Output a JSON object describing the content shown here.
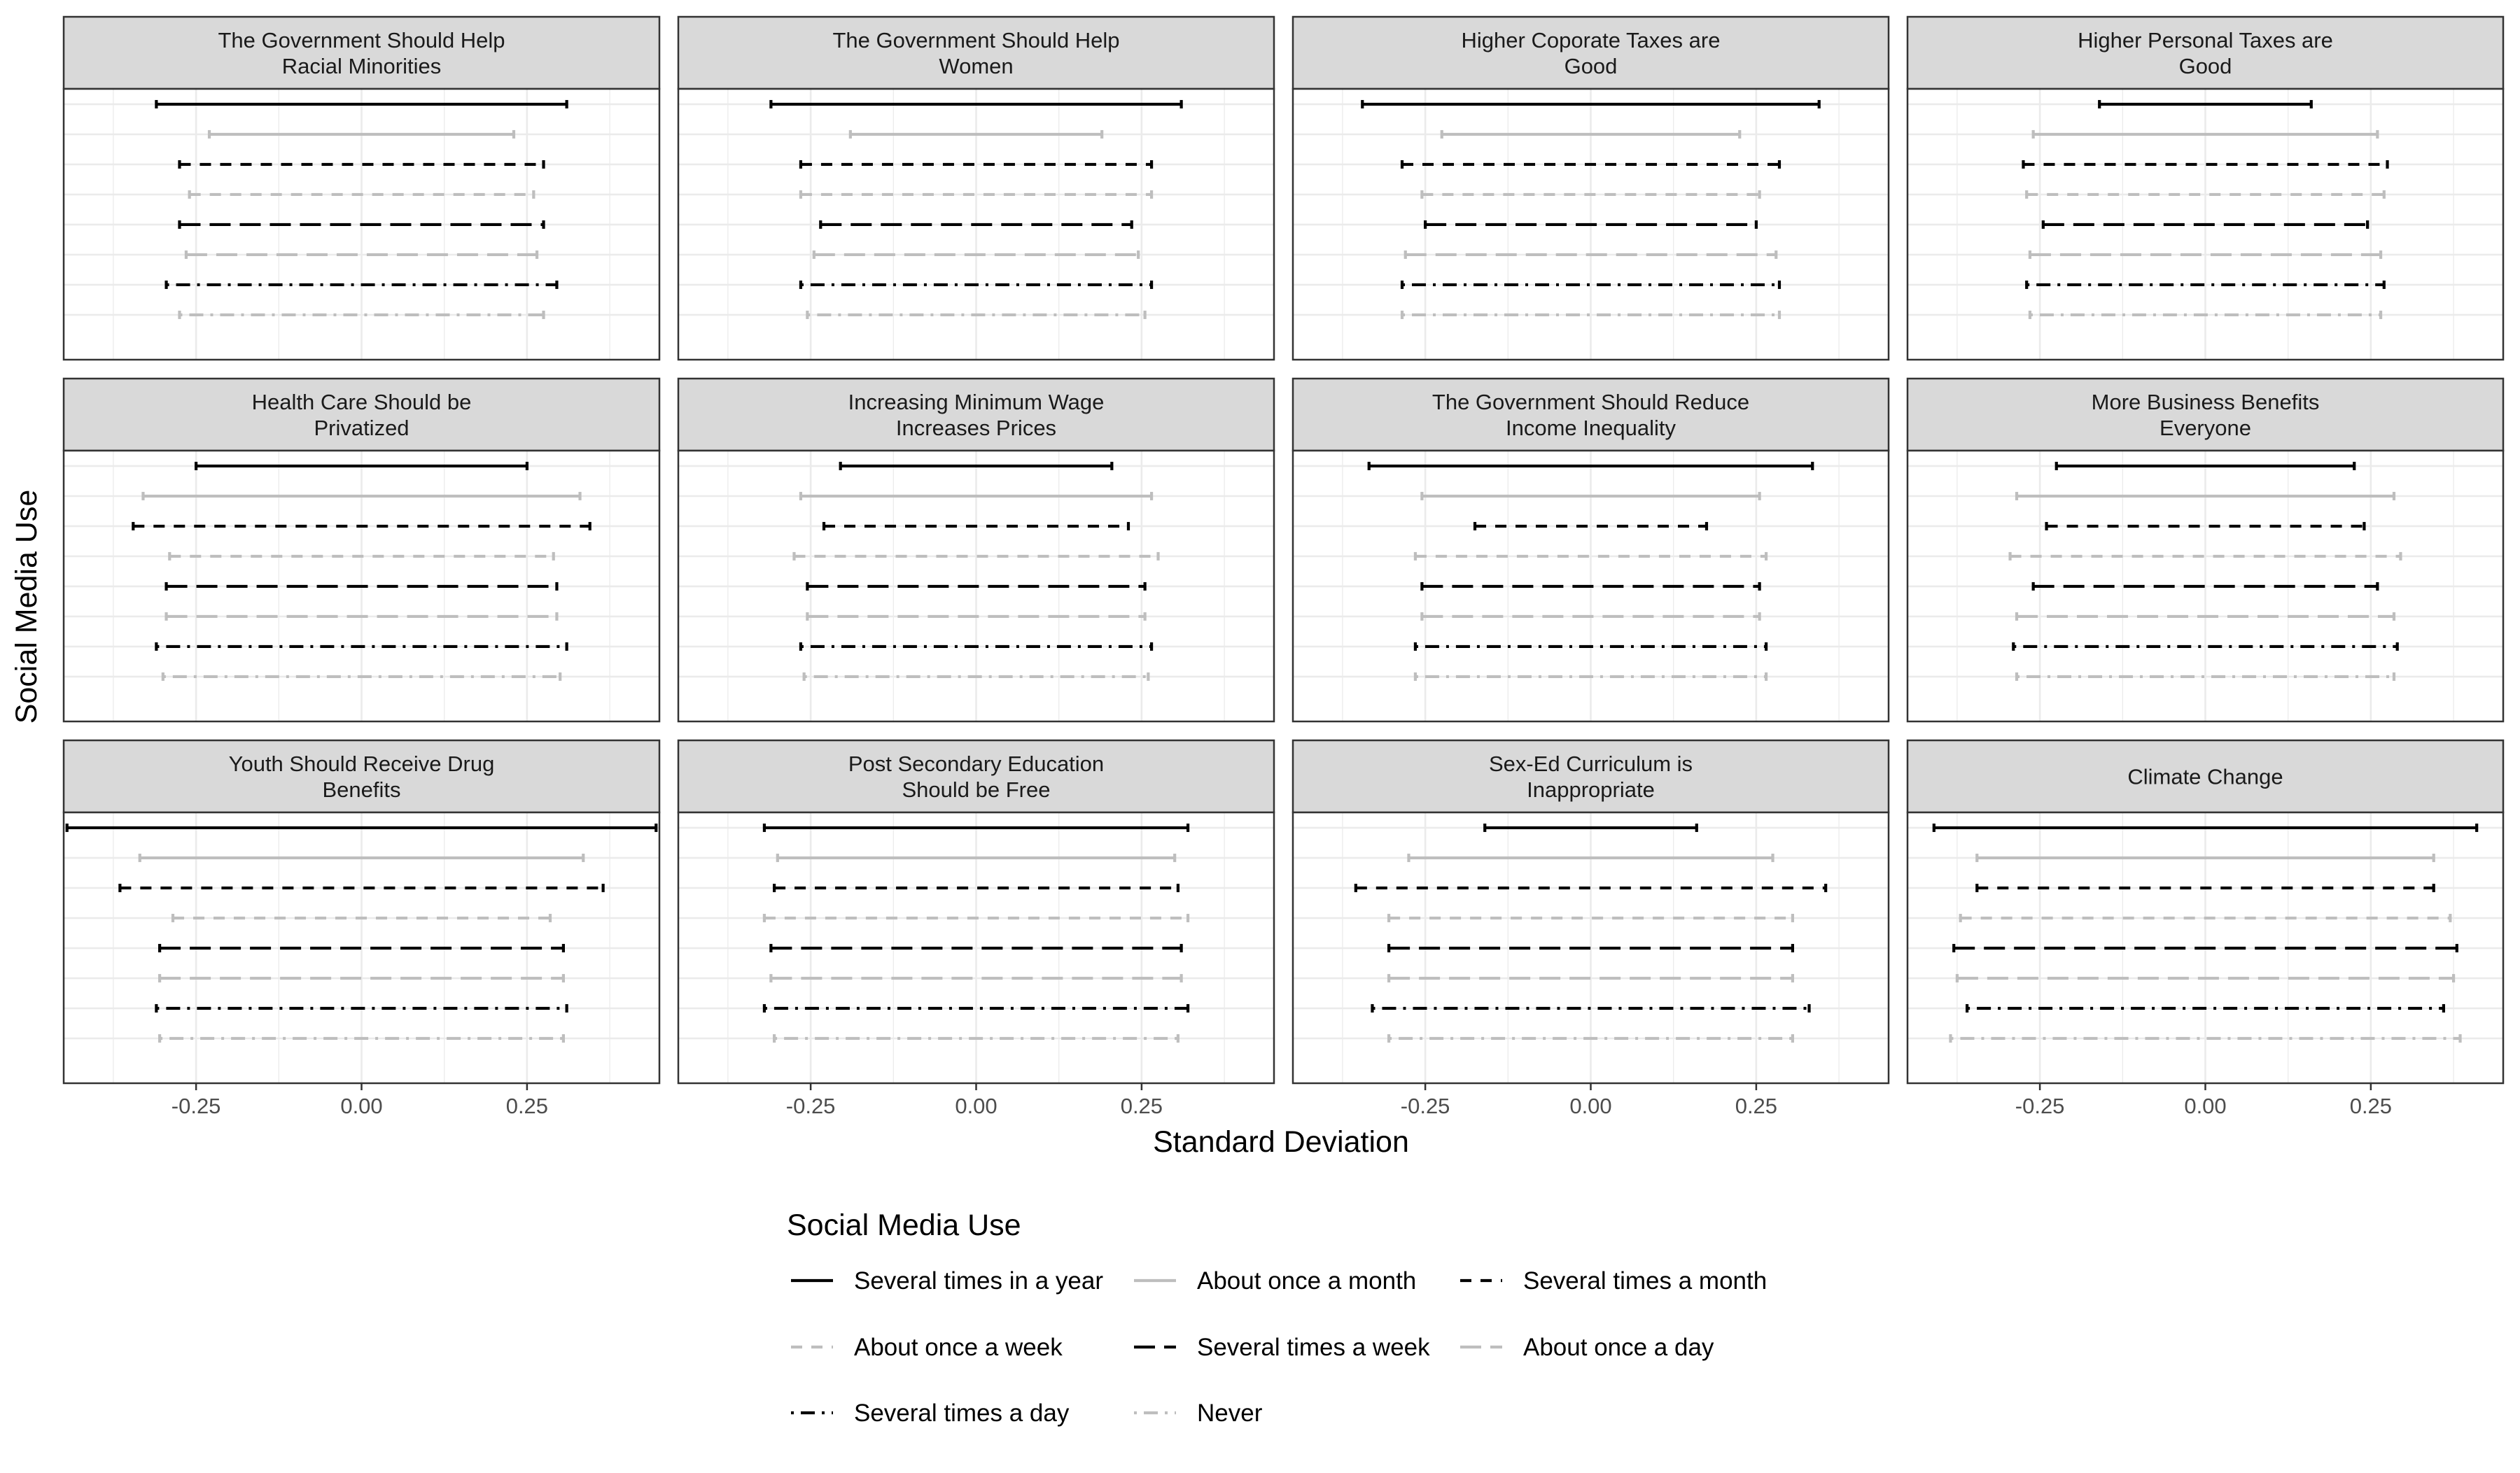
{
  "chart_data": {
    "type": "errorbar-facet",
    "xlabel": "Standard Deviation",
    "ylabel": "Social Media Use",
    "xlim": [
      -0.45,
      0.45
    ],
    "xticks": [
      -0.25,
      0.0,
      0.25
    ],
    "xtick_labels": [
      "-0.25",
      "0.00",
      "0.25"
    ],
    "grid": true,
    "legend": {
      "title": "Social Media Use",
      "placement": "bottom",
      "entries": [
        {
          "name": "Several times in a year",
          "color": "#000000",
          "dash": "solid"
        },
        {
          "name": "About once a month",
          "color": "#bebebe",
          "dash": "solid"
        },
        {
          "name": "Several times a month",
          "color": "#000000",
          "dash": "dashed"
        },
        {
          "name": "About once a week",
          "color": "#bebebe",
          "dash": "dashed"
        },
        {
          "name": "Several times a week",
          "color": "#000000",
          "dash": "longdash"
        },
        {
          "name": "About once a day",
          "color": "#bebebe",
          "dash": "longdash"
        },
        {
          "name": "Several times a day",
          "color": "#000000",
          "dash": "dotdash"
        },
        {
          "name": "Never",
          "color": "#bebebe",
          "dash": "dotdash"
        }
      ]
    },
    "panels": [
      {
        "title": [
          "The Government Should Help",
          "Racial Minorities"
        ],
        "intervals": [
          [
            -0.31,
            0.31
          ],
          [
            -0.23,
            0.23
          ],
          [
            -0.275,
            0.275
          ],
          [
            -0.26,
            0.26
          ],
          [
            -0.275,
            0.275
          ],
          [
            -0.265,
            0.265
          ],
          [
            -0.295,
            0.295
          ],
          [
            -0.275,
            0.275
          ]
        ]
      },
      {
        "title": [
          "The Government Should Help",
          "Women"
        ],
        "intervals": [
          [
            -0.31,
            0.31
          ],
          [
            -0.19,
            0.19
          ],
          [
            -0.265,
            0.265
          ],
          [
            -0.265,
            0.265
          ],
          [
            -0.235,
            0.235
          ],
          [
            -0.245,
            0.245
          ],
          [
            -0.265,
            0.265
          ],
          [
            -0.255,
            0.255
          ]
        ]
      },
      {
        "title": [
          "Higher Coporate Taxes are",
          "Good"
        ],
        "intervals": [
          [
            -0.345,
            0.345
          ],
          [
            -0.225,
            0.225
          ],
          [
            -0.285,
            0.285
          ],
          [
            -0.255,
            0.255
          ],
          [
            -0.25,
            0.25
          ],
          [
            -0.28,
            0.28
          ],
          [
            -0.285,
            0.285
          ],
          [
            -0.285,
            0.285
          ]
        ]
      },
      {
        "title": [
          "Higher Personal Taxes are",
          "Good"
        ],
        "intervals": [
          [
            -0.16,
            0.16
          ],
          [
            -0.26,
            0.26
          ],
          [
            -0.275,
            0.275
          ],
          [
            -0.27,
            0.27
          ],
          [
            -0.245,
            0.245
          ],
          [
            -0.265,
            0.265
          ],
          [
            -0.27,
            0.27
          ],
          [
            -0.265,
            0.265
          ]
        ]
      },
      {
        "title": [
          "Health Care Should be",
          "Privatized"
        ],
        "intervals": [
          [
            -0.25,
            0.25
          ],
          [
            -0.33,
            0.33
          ],
          [
            -0.345,
            0.345
          ],
          [
            -0.29,
            0.29
          ],
          [
            -0.295,
            0.295
          ],
          [
            -0.295,
            0.295
          ],
          [
            -0.31,
            0.31
          ],
          [
            -0.3,
            0.3
          ]
        ]
      },
      {
        "title": [
          "Increasing Minimum Wage",
          "Increases Prices"
        ],
        "intervals": [
          [
            -0.205,
            0.205
          ],
          [
            -0.265,
            0.265
          ],
          [
            -0.23,
            0.23
          ],
          [
            -0.275,
            0.275
          ],
          [
            -0.255,
            0.255
          ],
          [
            -0.255,
            0.255
          ],
          [
            -0.265,
            0.265
          ],
          [
            -0.26,
            0.26
          ]
        ]
      },
      {
        "title": [
          "The Government Should Reduce",
          "Income Inequality"
        ],
        "intervals": [
          [
            -0.335,
            0.335
          ],
          [
            -0.255,
            0.255
          ],
          [
            -0.175,
            0.175
          ],
          [
            -0.265,
            0.265
          ],
          [
            -0.255,
            0.255
          ],
          [
            -0.255,
            0.255
          ],
          [
            -0.265,
            0.265
          ],
          [
            -0.265,
            0.265
          ]
        ]
      },
      {
        "title": [
          "More Business Benefits",
          "Everyone"
        ],
        "intervals": [
          [
            -0.225,
            0.225
          ],
          [
            -0.285,
            0.285
          ],
          [
            -0.24,
            0.24
          ],
          [
            -0.295,
            0.295
          ],
          [
            -0.26,
            0.26
          ],
          [
            -0.285,
            0.285
          ],
          [
            -0.29,
            0.29
          ],
          [
            -0.285,
            0.285
          ]
        ]
      },
      {
        "title": [
          "Youth Should Receive Drug",
          "Benefits"
        ],
        "intervals": [
          [
            -0.445,
            0.445
          ],
          [
            -0.335,
            0.335
          ],
          [
            -0.365,
            0.365
          ],
          [
            -0.285,
            0.285
          ],
          [
            -0.305,
            0.305
          ],
          [
            -0.305,
            0.305
          ],
          [
            -0.31,
            0.31
          ],
          [
            -0.305,
            0.305
          ]
        ]
      },
      {
        "title": [
          "Post Secondary Education",
          "Should be Free"
        ],
        "intervals": [
          [
            -0.32,
            0.32
          ],
          [
            -0.3,
            0.3
          ],
          [
            -0.305,
            0.305
          ],
          [
            -0.32,
            0.32
          ],
          [
            -0.31,
            0.31
          ],
          [
            -0.31,
            0.31
          ],
          [
            -0.32,
            0.32
          ],
          [
            -0.305,
            0.305
          ]
        ]
      },
      {
        "title": [
          "Sex-Ed Curriculum is",
          "Inappropriate"
        ],
        "intervals": [
          [
            -0.16,
            0.16
          ],
          [
            -0.275,
            0.275
          ],
          [
            -0.355,
            0.355
          ],
          [
            -0.305,
            0.305
          ],
          [
            -0.305,
            0.305
          ],
          [
            -0.305,
            0.305
          ],
          [
            -0.33,
            0.33
          ],
          [
            -0.305,
            0.305
          ]
        ]
      },
      {
        "title": [
          "Climate Change"
        ],
        "intervals": [
          [
            -0.41,
            0.41
          ],
          [
            -0.345,
            0.345
          ],
          [
            -0.345,
            0.345
          ],
          [
            -0.37,
            0.37
          ],
          [
            -0.38,
            0.38
          ],
          [
            -0.375,
            0.375
          ],
          [
            -0.36,
            0.36
          ],
          [
            -0.385,
            0.385
          ]
        ]
      }
    ]
  }
}
